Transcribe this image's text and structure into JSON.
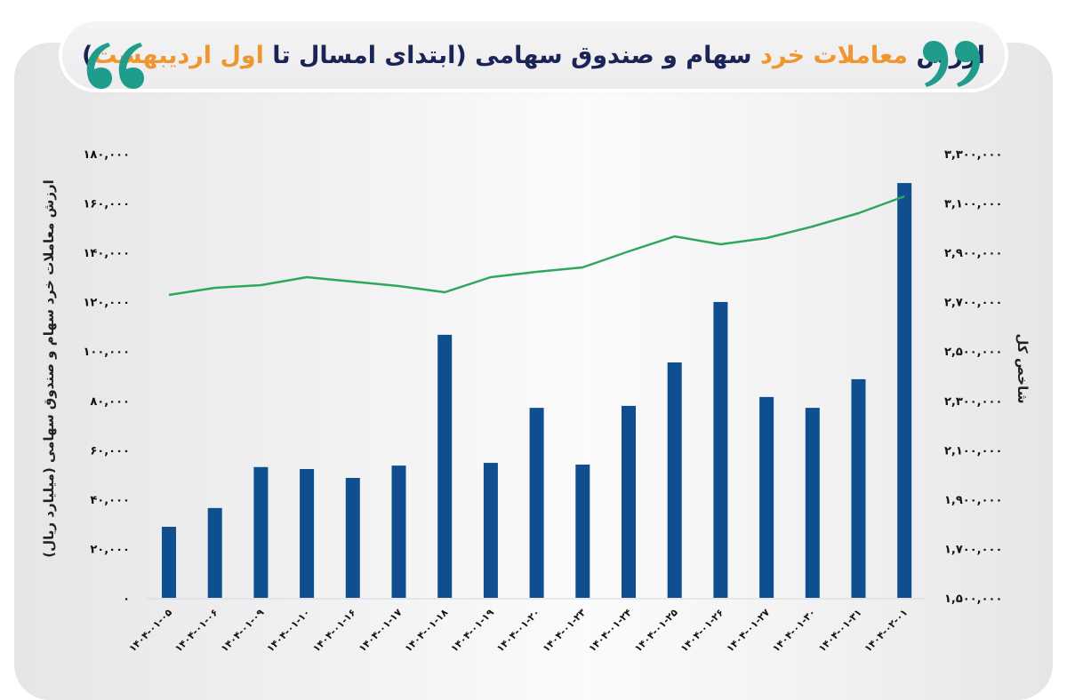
{
  "header": {
    "title_parts": [
      {
        "text": "ارزش ",
        "highlight": false
      },
      {
        "text": "معاملات خرد",
        "highlight": true
      },
      {
        "text": " سهام و صندوق سهامی (ابتدای امسال تا ",
        "highlight": false
      },
      {
        "text": "اول اردیبهشت",
        "highlight": true
      },
      {
        "text": ")",
        "highlight": false
      }
    ],
    "quote_open_icon": "quote-open-icon",
    "quote_close_icon": "quote-close-icon"
  },
  "colors": {
    "bar": "#0f4f8f",
    "line": "#2ea85a",
    "title_text": "#1a2456",
    "title_highlight": "#f0962f",
    "quote": "#1f9c8c",
    "tick_text": "#111111"
  },
  "axes": {
    "left_title": "ارزش معاملات خرد سهام و صندوق سهامی (میلیارد ریال)",
    "right_title": "شاخص کل",
    "left_ticks": [
      "۰",
      "۲۰,۰۰۰",
      "۴۰,۰۰۰",
      "۶۰,۰۰۰",
      "۸۰,۰۰۰",
      "۱۰۰,۰۰۰",
      "۱۲۰,۰۰۰",
      "۱۴۰,۰۰۰",
      "۱۶۰,۰۰۰",
      "۱۸۰,۰۰۰"
    ],
    "right_ticks": [
      "۱,۵۰۰,۰۰۰",
      "۱,۷۰۰,۰۰۰",
      "۱,۹۰۰,۰۰۰",
      "۲,۱۰۰,۰۰۰",
      "۲,۳۰۰,۰۰۰",
      "۲,۵۰۰,۰۰۰",
      "۲,۷۰۰,۰۰۰",
      "۲,۹۰۰,۰۰۰",
      "۳,۱۰۰,۰۰۰",
      "۳,۳۰۰,۰۰۰"
    ],
    "x_tick_labels": [
      "۱۴۰۴-۰۱-۰۵",
      "۱۴۰۴-۰۱-۰۶",
      "۱۴۰۴-۰۱-۰۹",
      "۱۴۰۴-۰۱-۱۰",
      "۱۴۰۴-۰۱-۱۶",
      "۱۴۰۴-۰۱-۱۷",
      "۱۴۰۴-۰۱-۱۸",
      "۱۴۰۴-۰۱-۱۹",
      "۱۴۰۴-۰۱-۲۰",
      "۱۴۰۴-۰۱-۲۳",
      "۱۴۰۴-۰۱-۲۴",
      "۱۴۰۴-۰۱-۲۵",
      "۱۴۰۴-۰۱-۲۶",
      "۱۴۰۴-۰۱-۲۷",
      "۱۴۰۴-۰۱-۳۰",
      "۱۴۰۴-۰۱-۳۱",
      "۱۴۰۴-۰۲-۰۱"
    ]
  },
  "chart_data": {
    "type": "bar",
    "title": "ارزش معاملات خرد سهام و صندوق سهامی (ابتدای امسال تا اول اردیبهشت)",
    "categories": [
      "1404-01-05",
      "1404-01-06",
      "1404-01-09",
      "1404-01-10",
      "1404-01-16",
      "1404-01-17",
      "1404-01-18",
      "1404-01-19",
      "1404-01-20",
      "1404-01-23",
      "1404-01-24",
      "1404-01-25",
      "1404-01-26",
      "1404-01-27",
      "1404-01-30",
      "1404-01-31",
      "1404-02-01"
    ],
    "series": [
      {
        "name": "ارزش معاملات خرد سهام و صندوق سهامی (میلیارد ریال)",
        "type": "bar",
        "axis": "left",
        "values": [
          28800,
          36400,
          53000,
          52200,
          48600,
          53600,
          106600,
          54700,
          77000,
          54000,
          77800,
          95400,
          119900,
          81400,
          77000,
          88600,
          168100
        ]
      },
      {
        "name": "شاخص کل",
        "type": "line",
        "axis": "right",
        "values": [
          2727600,
          2756400,
          2767200,
          2799600,
          2781600,
          2763600,
          2738400,
          2799600,
          2821200,
          2839200,
          2904000,
          2965000,
          2932800,
          2958000,
          3004800,
          3058800,
          3127200
        ]
      }
    ],
    "xlabel": "",
    "ylabel": "ارزش معاملات خرد سهام و صندوق سهامی (میلیارد ریال)",
    "y2label": "شاخص کل",
    "ylim": [
      0,
      180000
    ],
    "y2lim": [
      1500000,
      3300000
    ],
    "y_ticks": [
      0,
      20000,
      40000,
      60000,
      80000,
      100000,
      120000,
      140000,
      160000,
      180000
    ],
    "y2_ticks": [
      1500000,
      1700000,
      1900000,
      2100000,
      2300000,
      2500000,
      2700000,
      2900000,
      3100000,
      3300000
    ],
    "grid": false,
    "legend": "none"
  }
}
